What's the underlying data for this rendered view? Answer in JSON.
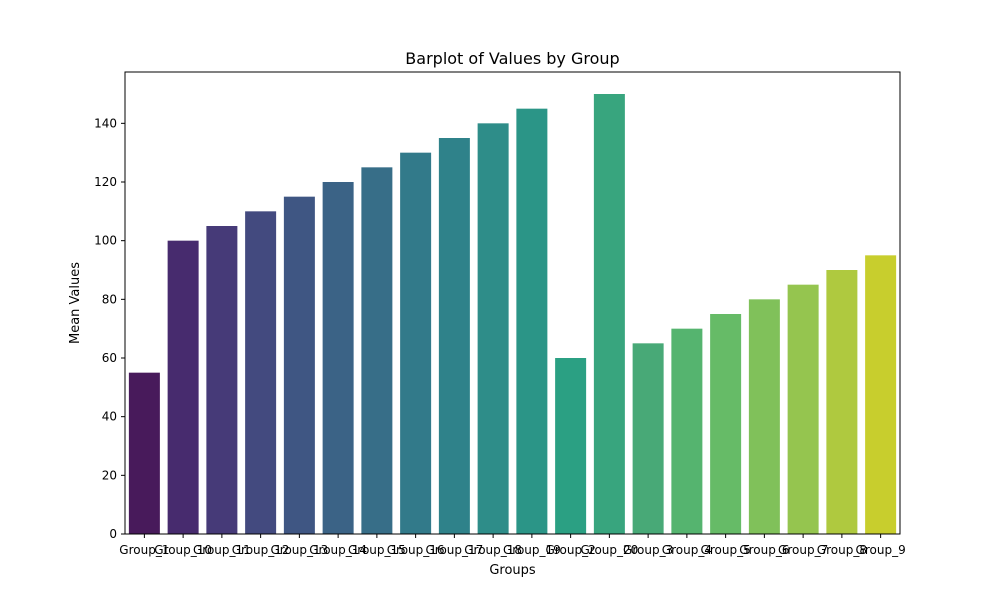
{
  "chart_data": {
    "type": "bar",
    "title": "Barplot of Values by Group",
    "xlabel": "Groups",
    "ylabel": "Mean Values",
    "categories": [
      "Group_1",
      "Group_10",
      "Group_11",
      "Group_12",
      "Group_13",
      "Group_14",
      "Group_15",
      "Group_16",
      "Group_17",
      "Group_18",
      "Group_19",
      "Group_2",
      "Group_20",
      "Group_3",
      "Group_4",
      "Group_5",
      "Group_6",
      "Group_7",
      "Group_8",
      "Group_9"
    ],
    "values": [
      55,
      100,
      105,
      110,
      115,
      120,
      125,
      130,
      135,
      140,
      145,
      60,
      150,
      65,
      70,
      75,
      80,
      85,
      90,
      95
    ],
    "colors": [
      "#481a5b",
      "#472b6e",
      "#463a78",
      "#434a7f",
      "#3f5683",
      "#3b6386",
      "#376e88",
      "#327a8a",
      "#2f828a",
      "#2e8d89",
      "#2b9587",
      "#2ba083",
      "#38a57e",
      "#48a977",
      "#55b46f",
      "#66bb67",
      "#80c15a",
      "#95c54f",
      "#afc93f",
      "#c8ce2d"
    ],
    "ylim": [
      0,
      157.5
    ],
    "yticks": [
      0,
      20,
      40,
      60,
      80,
      100,
      120,
      140
    ],
    "grid": false,
    "legend": "none"
  }
}
